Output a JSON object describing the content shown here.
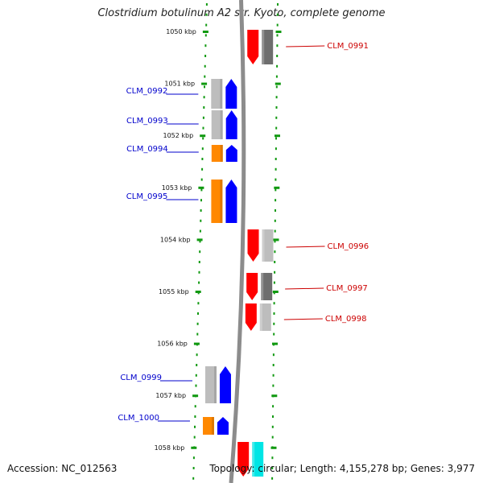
{
  "title": "Clostridium botulinum A2 str. Kyoto, complete genome",
  "footer": {
    "accession": "Accession: NC_012563",
    "topology": "Topology: circular; Length: 4,155,278 bp; Genes: 3,977"
  },
  "colors": {
    "backbone": "#8c8c8c",
    "scale_dots": "#119911",
    "left_label": "#0000cc",
    "right_label": "#cc0000",
    "red_frame": "#ff0000",
    "blue_frame": "#0000ff",
    "orange_frame": "#ff8800",
    "cyan_frame": "#00e5e5",
    "gray_light": "#bdbdbd",
    "gray_dark": "#6e6e6e"
  },
  "ticks": [
    {
      "label": "1050 kbp"
    },
    {
      "label": "1051 kbp"
    },
    {
      "label": "1052 kbp"
    },
    {
      "label": "1053 kbp"
    },
    {
      "label": "1054 kbp"
    },
    {
      "label": "1055 kbp"
    },
    {
      "label": "1056 kbp"
    },
    {
      "label": "1057 kbp"
    },
    {
      "label": "1058 kbp"
    }
  ],
  "genes": [
    {
      "name": "CLM_0991",
      "strand": "reverse",
      "frame_color": "red",
      "cog_color": "gray-dark"
    },
    {
      "name": "CLM_0992",
      "strand": "forward",
      "frame_color": "blue",
      "cog_color": "gray-light"
    },
    {
      "name": "CLM_0993",
      "strand": "forward",
      "frame_color": "blue",
      "cog_color": "gray-light"
    },
    {
      "name": "CLM_0994",
      "strand": "forward",
      "frame_color": "blue",
      "cog_color": "orange"
    },
    {
      "name": "CLM_0995",
      "strand": "forward",
      "frame_color": "blue",
      "cog_color": "orange"
    },
    {
      "name": "CLM_0996",
      "strand": "reverse",
      "frame_color": "red",
      "cog_color": "gray-light"
    },
    {
      "name": "CLM_0997",
      "strand": "reverse",
      "frame_color": "red",
      "cog_color": "gray-dark"
    },
    {
      "name": "CLM_0998",
      "strand": "reverse",
      "frame_color": "red",
      "cog_color": "gray-light"
    },
    {
      "name": "CLM_0999",
      "strand": "forward",
      "frame_color": "blue",
      "cog_color": "gray-light"
    },
    {
      "name": "CLM_1000",
      "strand": "forward",
      "frame_color": "blue",
      "cog_color": "orange"
    },
    {
      "name": "",
      "strand": "reverse",
      "frame_color": "red",
      "cog_color": "cyan"
    }
  ]
}
